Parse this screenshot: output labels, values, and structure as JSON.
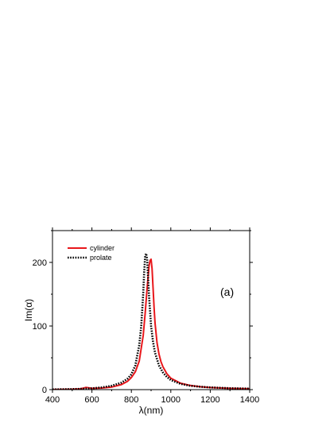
{
  "chart_data": {
    "type": "line",
    "title": "",
    "xlabel": "λ(nm)",
    "ylabel": "Im(α)",
    "annotation": "(a)",
    "xlim": [
      400,
      1400
    ],
    "ylim": [
      0,
      250
    ],
    "xticks": [
      400,
      600,
      800,
      1000,
      1200,
      1400
    ],
    "yticks": [
      0,
      100,
      200
    ],
    "grid": false,
    "legend_position": "top-left",
    "series": [
      {
        "name": "cylinder",
        "color": "#e8171b",
        "style": "solid",
        "x": [
          400,
          500,
          540,
          560,
          570,
          580,
          600,
          650,
          700,
          750,
          780,
          800,
          820,
          840,
          860,
          870,
          880,
          890,
          895,
          900,
          905,
          910,
          915,
          920,
          930,
          940,
          950,
          960,
          980,
          1000,
          1050,
          1100,
          1150,
          1200,
          1300,
          1400
        ],
        "values": [
          0.2,
          0.6,
          1.2,
          2.5,
          3.5,
          3.0,
          2.0,
          2.5,
          4,
          8,
          13,
          19,
          28,
          45,
          85,
          120,
          160,
          195,
          203,
          205,
          190,
          160,
          130,
          105,
          74,
          56,
          44,
          36,
          25,
          18,
          10,
          6.5,
          4.5,
          3.3,
          2,
          1.4
        ]
      },
      {
        "name": "prolate",
        "color": "#000000",
        "style": "dotted",
        "x": [
          400,
          500,
          550,
          600,
          650,
          700,
          750,
          780,
          800,
          820,
          840,
          850,
          860,
          865,
          870,
          875,
          880,
          885,
          890,
          900,
          910,
          920,
          940,
          960,
          980,
          1000,
          1050,
          1100,
          1150,
          1200,
          1300,
          1400
        ],
        "values": [
          0.3,
          0.8,
          1.2,
          2,
          3.5,
          6,
          11,
          17,
          24,
          38,
          70,
          100,
          150,
          185,
          210,
          214,
          205,
          175,
          145,
          100,
          75,
          58,
          38,
          27,
          20,
          15,
          9,
          6,
          4.5,
          3.5,
          2.2,
          1.5
        ]
      }
    ]
  }
}
